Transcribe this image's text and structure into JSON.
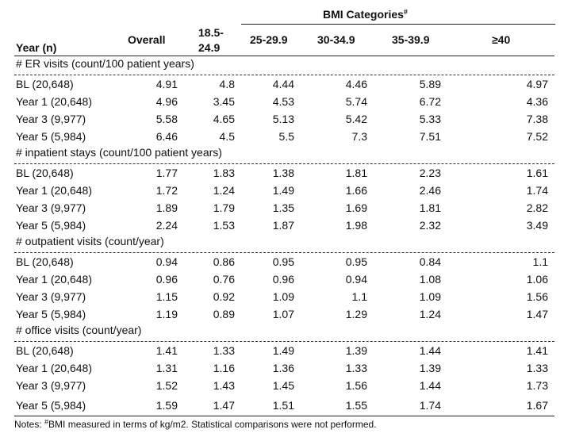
{
  "header": {
    "bmi_group_label": "BMI Categories",
    "bmi_group_sup": "#",
    "year_label": "Year (n)",
    "columns": [
      "Overall",
      "18.5-",
      "24.9",
      "25-29.9",
      "30-34.9",
      "35-39.9",
      "≥40"
    ]
  },
  "sections": [
    {
      "title": "# ER visits (count/100 patient years)",
      "rows": [
        {
          "label": "BL (20,648)",
          "values": [
            "4.91",
            "4.8",
            "4.44",
            "4.46",
            "5.89",
            "4.97"
          ]
        },
        {
          "label": "Year 1 (20,648)",
          "values": [
            "4.96",
            "3.45",
            "4.53",
            "5.74",
            "6.72",
            "4.36"
          ]
        },
        {
          "label": "Year 3 (9,977)",
          "values": [
            "5.58",
            "4.65",
            "5.13",
            "5.42",
            "5.33",
            "7.38"
          ]
        },
        {
          "label": "Year 5 (5,984)",
          "values": [
            "6.46",
            "4.5",
            "5.5",
            "7.3",
            "7.51",
            "7.52"
          ]
        }
      ]
    },
    {
      "title": "# inpatient stays (count/100 patient years)",
      "rows": [
        {
          "label": "BL (20,648)",
          "values": [
            "1.77",
            "1.83",
            "1.38",
            "1.81",
            "2.23",
            "1.61"
          ]
        },
        {
          "label": "Year 1 (20,648)",
          "values": [
            "1.72",
            "1.24",
            "1.49",
            "1.66",
            "2.46",
            "1.74"
          ]
        },
        {
          "label": "Year 3 (9,977)",
          "values": [
            "1.89",
            "1.79",
            "1.35",
            "1.69",
            "1.81",
            "2.82"
          ]
        },
        {
          "label": "Year 5 (5,984)",
          "values": [
            "2.24",
            "1.53",
            "1.87",
            "1.98",
            "2.32",
            "3.49"
          ]
        }
      ]
    },
    {
      "title": "# outpatient visits (count/year)",
      "rows": [
        {
          "label": "BL (20,648)",
          "values": [
            "0.94",
            "0.86",
            "0.95",
            "0.95",
            "0.84",
            "1.1"
          ]
        },
        {
          "label": "Year 1 (20,648)",
          "values": [
            "0.96",
            "0.76",
            "0.96",
            "0.94",
            "1.08",
            "1.06"
          ]
        },
        {
          "label": "Year 3 (9,977)",
          "values": [
            "1.15",
            "0.92",
            "1.09",
            "1.1",
            "1.09",
            "1.56"
          ]
        },
        {
          "label": "Year 5 (5,984)",
          "values": [
            "1.19",
            "0.89",
            "1.07",
            "1.29",
            "1.24",
            "1.47"
          ]
        }
      ]
    },
    {
      "title": "# office visits (count/year)",
      "rows": [
        {
          "label": "BL (20,648)",
          "values": [
            "1.41",
            "1.33",
            "1.49",
            "1.39",
            "1.44",
            "1.41"
          ]
        },
        {
          "label": "Year 1 (20,648)",
          "values": [
            "1.31",
            "1.16",
            "1.36",
            "1.33",
            "1.39",
            "1.33"
          ]
        },
        {
          "label": "Year 3 (9,977)",
          "values": [
            "1.52",
            "1.43",
            "1.45",
            "1.56",
            "1.44",
            "1.73"
          ]
        },
        {
          "label": "Year 5 (5,984)",
          "values": [
            "1.59",
            "1.47",
            "1.51",
            "1.55",
            "1.74",
            "1.67"
          ]
        }
      ]
    }
  ],
  "notes": {
    "prefix": "Notes: ",
    "sup": "#",
    "text": "BMI measured in terms of kg/m2. Statistical comparisons were not performed."
  }
}
